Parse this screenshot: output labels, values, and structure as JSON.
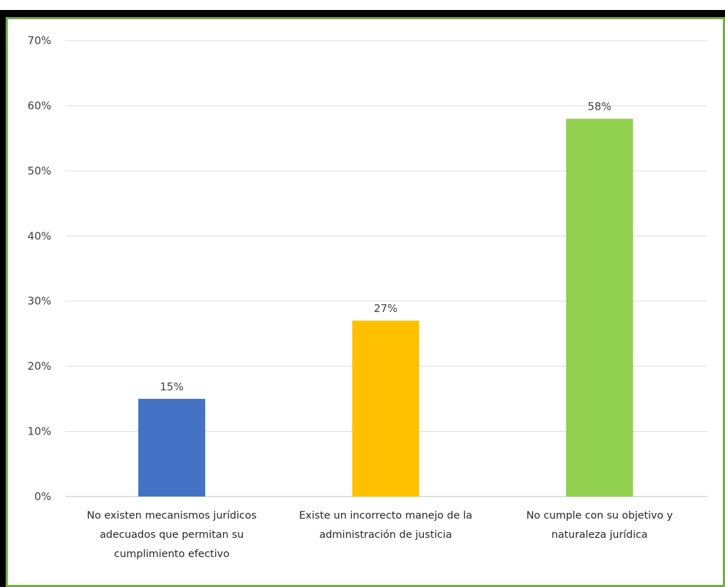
{
  "chart_data": {
    "type": "bar",
    "categories": [
      [
        "No existen mecanismos jurídicos",
        "adecuados que permitan su",
        "cumplimiento efectivo"
      ],
      [
        "Existe un incorrecto manejo de la",
        "administración de justicia"
      ],
      [
        "No cumple con su objetivo y",
        "naturaleza jurídica"
      ]
    ],
    "values": [
      15,
      27,
      58
    ],
    "data_labels": [
      "15%",
      "27%",
      "58%"
    ],
    "colors": [
      "#4472C4",
      "#FFC000",
      "#92D050"
    ],
    "ylim": [
      0,
      70
    ],
    "yticks": [
      0,
      10,
      20,
      30,
      40,
      50,
      60,
      70
    ],
    "ytick_labels": [
      "0%",
      "10%",
      "20%",
      "30%",
      "40%",
      "50%",
      "60%",
      "70%"
    ],
    "grid": true,
    "border_color": "#70AD47"
  }
}
